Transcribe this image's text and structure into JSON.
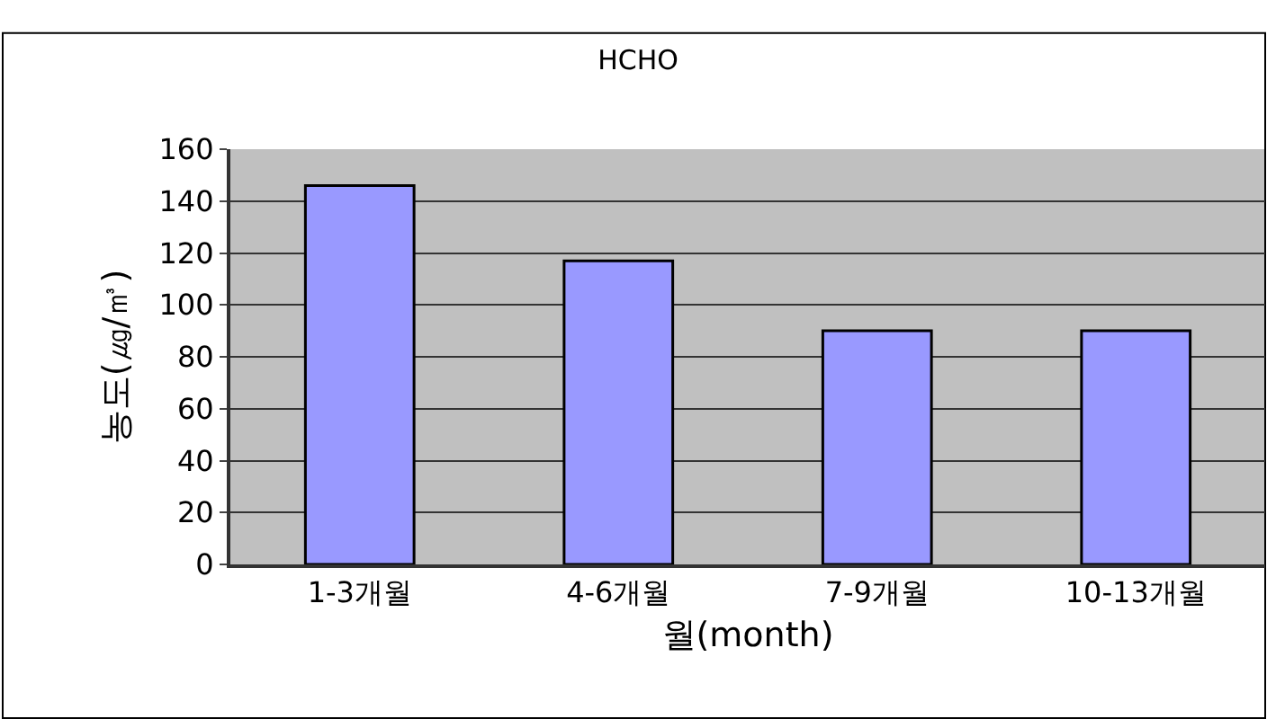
{
  "chart_data": {
    "type": "bar",
    "title": "HCHO",
    "xlabel": "월(month)",
    "ylabel": "농도(㎍/㎥)",
    "categories": [
      "1-3개월",
      "4-6개월",
      "7-9개월",
      "10-13개월"
    ],
    "values": [
      146,
      117,
      90,
      90
    ],
    "color": "#9999ff",
    "ylim": [
      0,
      160
    ],
    "yticks": [
      0,
      20,
      40,
      60,
      80,
      100,
      120,
      140,
      160
    ],
    "grid": "y"
  }
}
